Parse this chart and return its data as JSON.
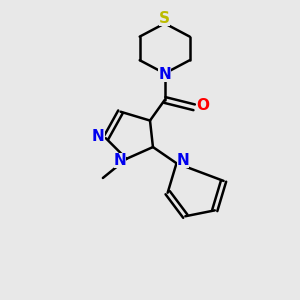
{
  "bg_color": "#e8e8e8",
  "bond_color": "#000000",
  "N_color": "#0000ee",
  "O_color": "#ff0000",
  "S_color": "#bbbb00",
  "line_width": 1.8,
  "figsize": [
    3.0,
    3.0
  ],
  "dpi": 100,
  "xlim": [
    0,
    10
  ],
  "ylim": [
    0,
    10
  ]
}
